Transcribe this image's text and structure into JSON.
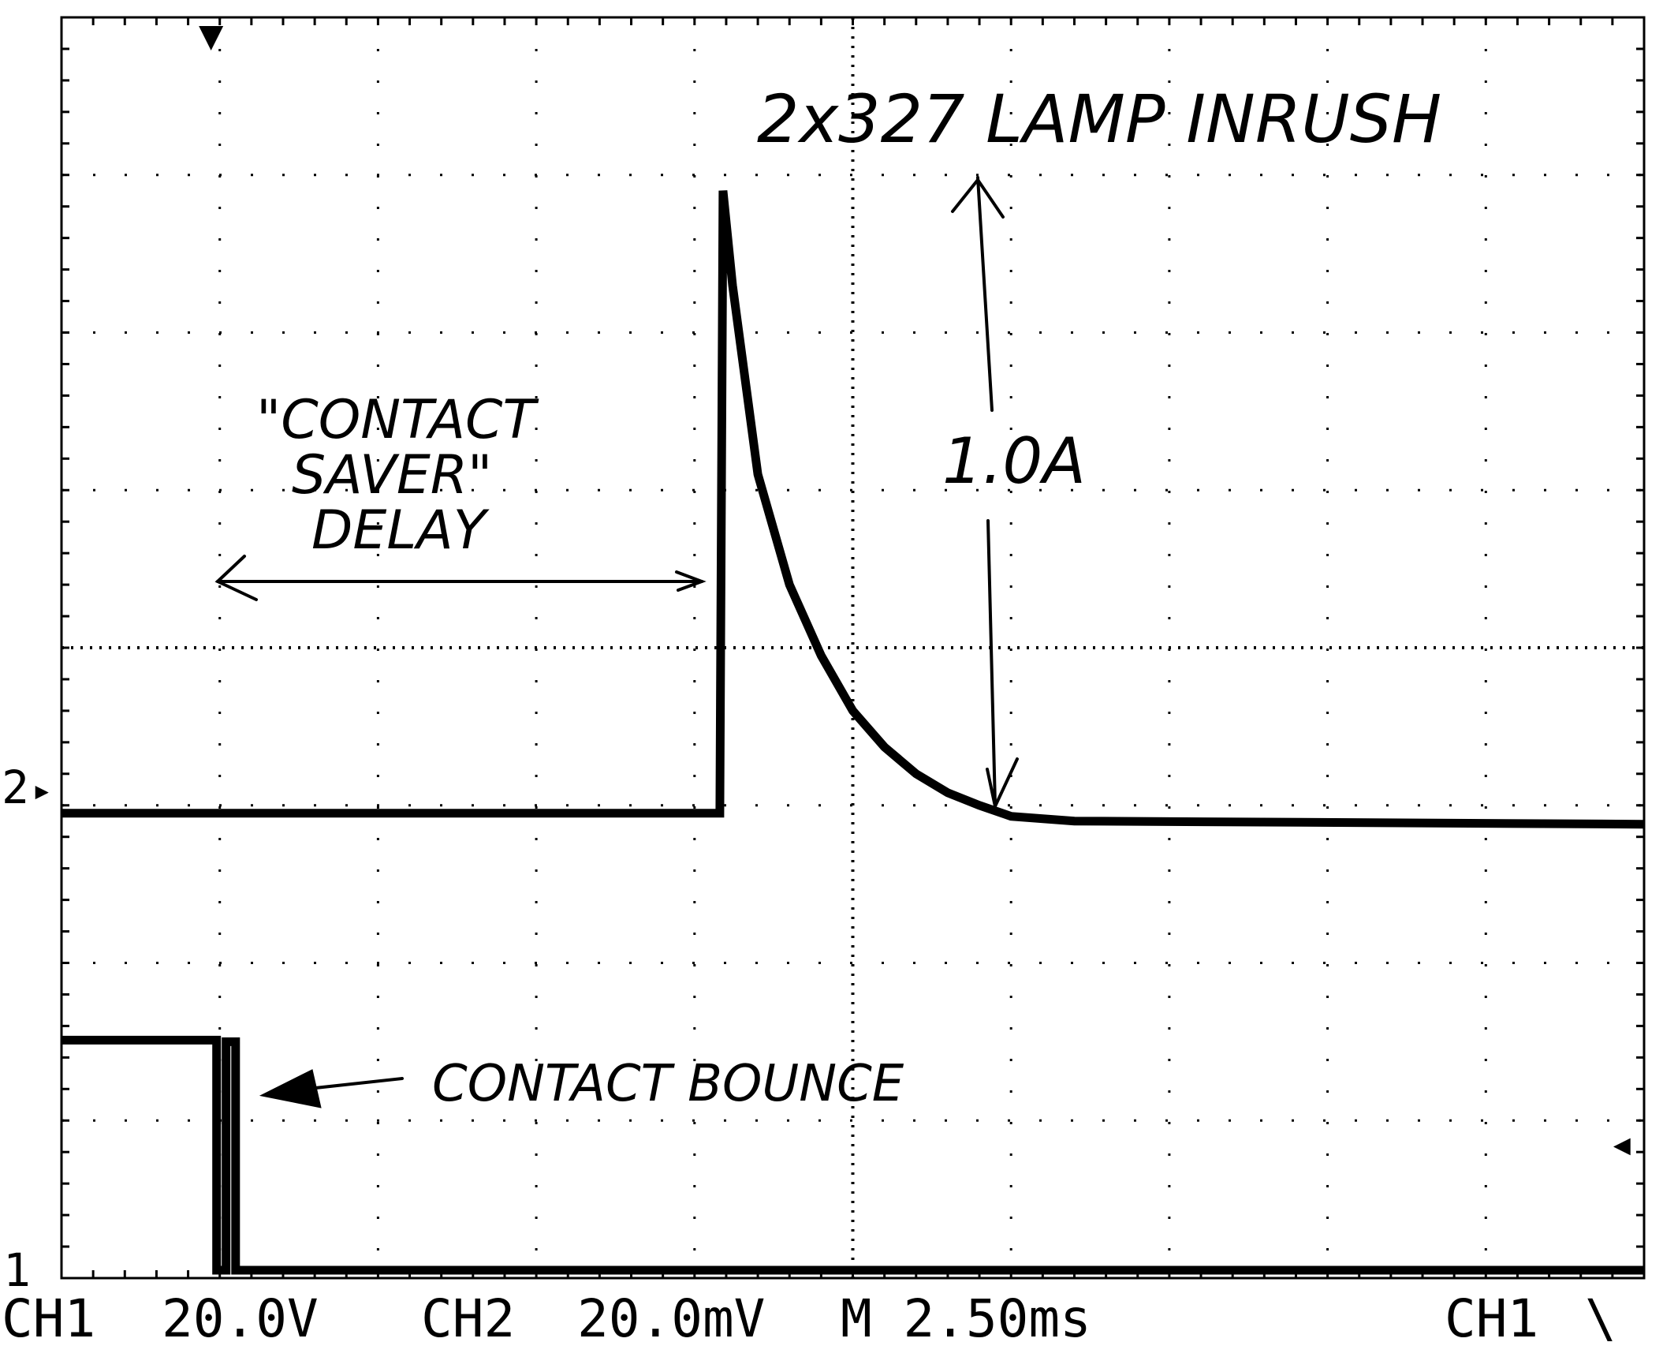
{
  "status_bar": {
    "ch1_label": "CH1",
    "ch1_scale": "20.0V",
    "ch2_label": "CH2",
    "ch2_scale": "20.0mV",
    "timebase": "M 2.50ms",
    "trigger_source": "CH1",
    "trigger_slope": "\\"
  },
  "markers": {
    "ch2_ground": "2",
    "ch1_ground": "1"
  },
  "annotations": {
    "inrush_title": "2x327 LAMP INRUSH",
    "peak_value": "1.0A",
    "delay_line1": "\"CONTACT",
    "delay_line2": "SAVER\"",
    "delay_line3": "DELAY",
    "bounce_label": "CONTACT BOUNCE"
  },
  "colors": {
    "trace": "#000000",
    "grid": "#000000",
    "background": "#ffffff"
  },
  "chart_data": {
    "type": "line",
    "title": "",
    "xlabel": "",
    "ylabel": "",
    "grid": true,
    "x_divisions": 10,
    "y_divisions": 8,
    "time_per_div_ms": 2.5,
    "xlim_ms": [
      0,
      25
    ],
    "ylim_div": [
      0,
      8
    ],
    "series": [
      {
        "name": "CH2",
        "unit_ms_div": [
          [
            0,
            2.95
          ],
          [
            10.4,
            2.95
          ],
          [
            10.45,
            6.9
          ],
          [
            10.6,
            6.3
          ],
          [
            11.0,
            5.1
          ],
          [
            11.5,
            4.4
          ],
          [
            12.0,
            3.95
          ],
          [
            12.5,
            3.6
          ],
          [
            13.0,
            3.37
          ],
          [
            13.5,
            3.2
          ],
          [
            14.0,
            3.08
          ],
          [
            14.5,
            3.0
          ],
          [
            15.0,
            2.93
          ],
          [
            16.0,
            2.9
          ],
          [
            25,
            2.88
          ]
        ]
      },
      {
        "name": "CH1",
        "unit_ms_div": [
          [
            0,
            1.51
          ],
          [
            2.45,
            1.51
          ],
          [
            2.45,
            0.05
          ],
          [
            2.6,
            0.05
          ],
          [
            2.6,
            1.5
          ],
          [
            2.75,
            1.5
          ],
          [
            2.75,
            0.05
          ],
          [
            25,
            0.05
          ]
        ]
      }
    ]
  }
}
